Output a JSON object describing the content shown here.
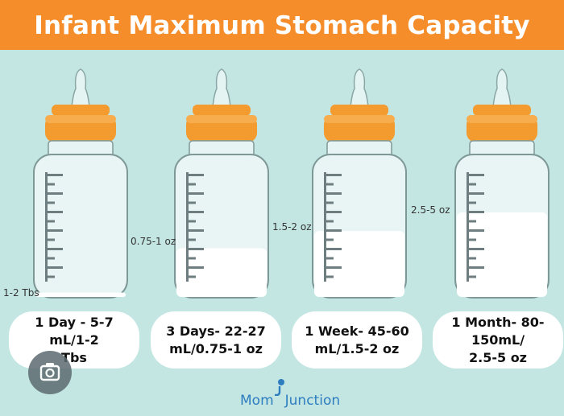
{
  "title": "Infant Maximum Stomach Capacity",
  "colors": {
    "banner": "#f68d2b",
    "background": "#c3e6e3",
    "cap": "#f39b2e",
    "milk": "#ffffff",
    "logo": "#2d7dbf"
  },
  "bottles": [
    {
      "label": "1-2 Tbs",
      "card": [
        "1 Day - 5-7 mL/1-2",
        "Tbs"
      ],
      "fill_fraction": 0.03
    },
    {
      "label": "0.75-1 oz",
      "card": [
        "3 Days- 22-27",
        "mL/0.75-1 oz"
      ],
      "fill_fraction": 0.34
    },
    {
      "label": "1.5-2 oz",
      "card": [
        "1 Week- 45-60",
        "mL/1.5-2 oz"
      ],
      "fill_fraction": 0.46
    },
    {
      "label": "2.5-5 oz",
      "card": [
        "1 Month- 80-150mL/",
        "2.5-5 oz"
      ],
      "fill_fraction": 0.59
    }
  ],
  "logo": {
    "text_left": "Mom",
    "text_right": "Junction"
  },
  "icons": {
    "lens": "camera-lens-icon"
  }
}
